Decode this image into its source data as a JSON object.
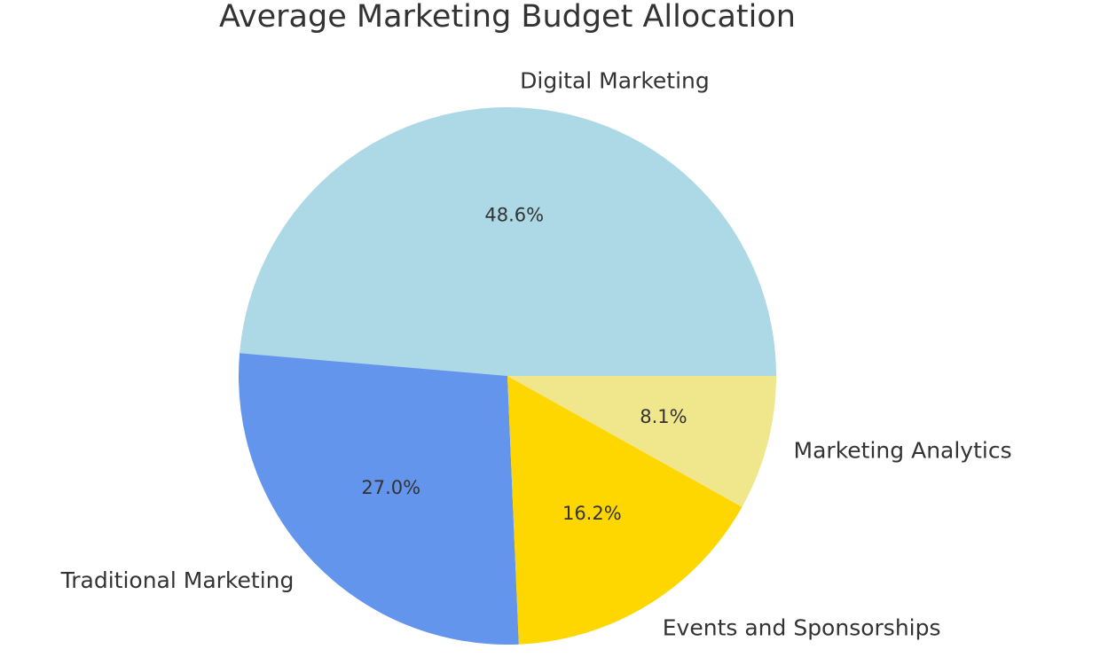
{
  "chart_data": {
    "type": "pie",
    "title": "Average Marketing Budget Allocation",
    "start_angle_deg": 0,
    "direction": "counterclockwise",
    "slices": [
      {
        "label": "Digital Marketing",
        "value": 48.6,
        "pct_label": "48.6%",
        "color": "#ADD8E6"
      },
      {
        "label": "Traditional Marketing",
        "value": 27.0,
        "pct_label": "27.0%",
        "color": "#6495ED"
      },
      {
        "label": "Events and Sponsorships",
        "value": 16.2,
        "pct_label": "16.2%",
        "color": "#FFD700"
      },
      {
        "label": "Marketing Analytics",
        "value": 8.1,
        "pct_label": "8.1%",
        "color": "#F0E68C"
      }
    ]
  }
}
